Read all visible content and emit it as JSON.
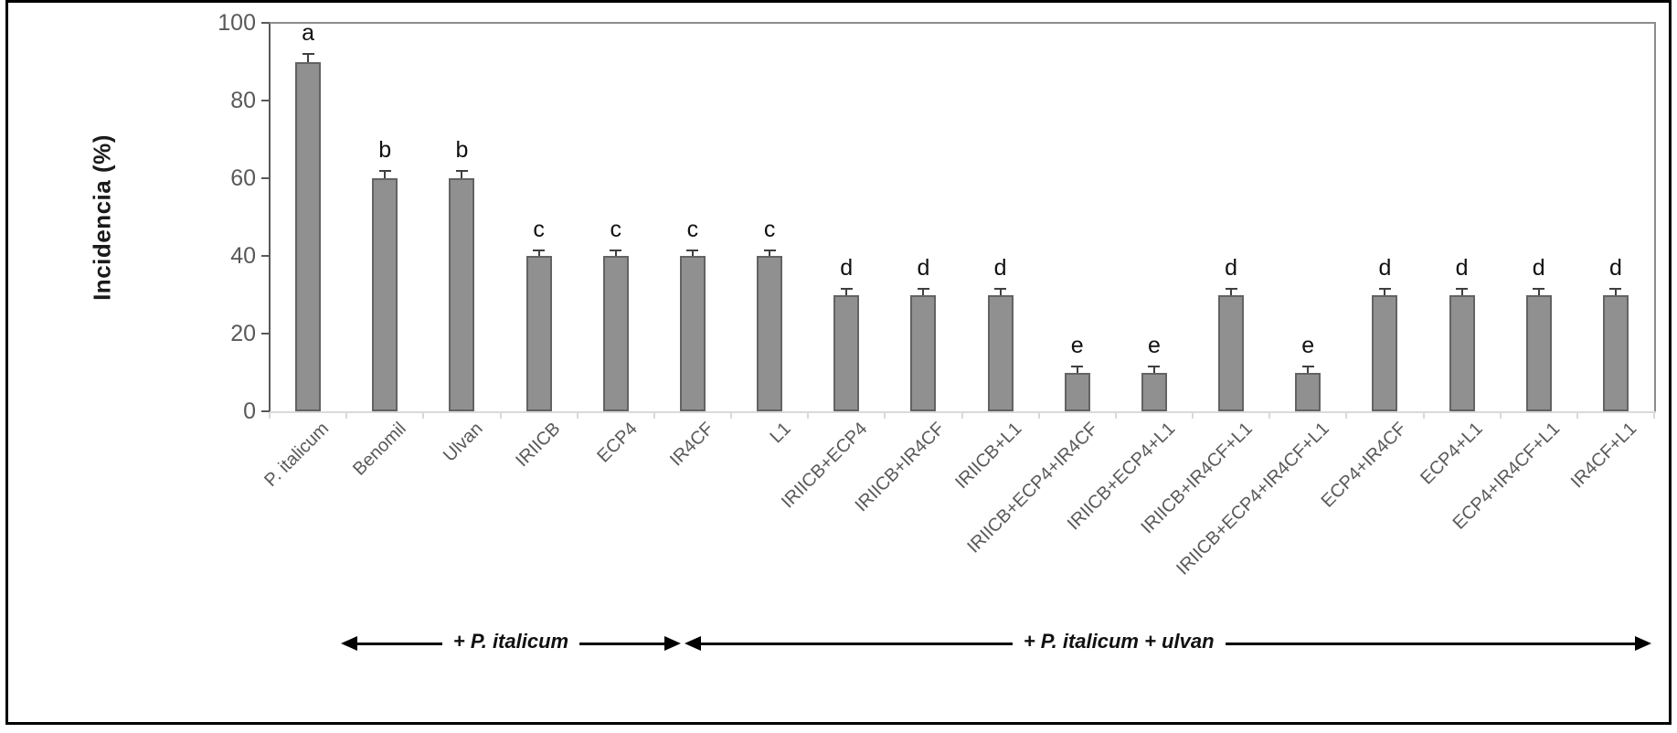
{
  "figure": {
    "background": "#ffffff",
    "border_color": "#000000"
  },
  "chart_data": {
    "type": "bar",
    "title": "",
    "ylabel": "Incidencia (%)",
    "xlabel": "",
    "ylim": [
      0,
      100
    ],
    "yticks": [
      0,
      20,
      40,
      60,
      80,
      100
    ],
    "grid": false,
    "legend": false,
    "bar_fill": "#909090",
    "bar_border": "#636363",
    "categories": [
      "P. italicum",
      "Benomil",
      "Ulvan",
      "IRIICB",
      "ECP4",
      "IR4CF",
      "L1",
      "IRIICB+ECP4",
      "IRIICB+IR4CF",
      "IRIICB+L1",
      "IRIICB+ECP4+IR4CF",
      "IRIICB+ECP4+L1",
      "IRIICB+IR4CF+L1",
      "IRIICB+ECP4+IR4CF+L1",
      "ECP4+IR4CF",
      "ECP4+L1",
      "ECP4+IR4CF+L1",
      "IR4CF+L1"
    ],
    "values": [
      90,
      60,
      60,
      40,
      40,
      40,
      40,
      30,
      30,
      30,
      10,
      10,
      30,
      10,
      30,
      30,
      30,
      30
    ],
    "errors": [
      2,
      2,
      2,
      1.5,
      1.5,
      1.5,
      1.5,
      1.5,
      1.5,
      1.5,
      1.5,
      1.5,
      1.5,
      1.5,
      1.5,
      1.5,
      1.5,
      1.5
    ],
    "sig_letters": [
      "a",
      "b",
      "b",
      "c",
      "c",
      "c",
      "c",
      "d",
      "d",
      "d",
      "e",
      "e",
      "d",
      "e",
      "d",
      "d",
      "d",
      "d"
    ],
    "annotations": [
      {
        "label": "+ P. italicum",
        "arrow": "double-headed"
      },
      {
        "label": "+ P. italicum + ulvan",
        "arrow": "double-headed"
      }
    ]
  }
}
